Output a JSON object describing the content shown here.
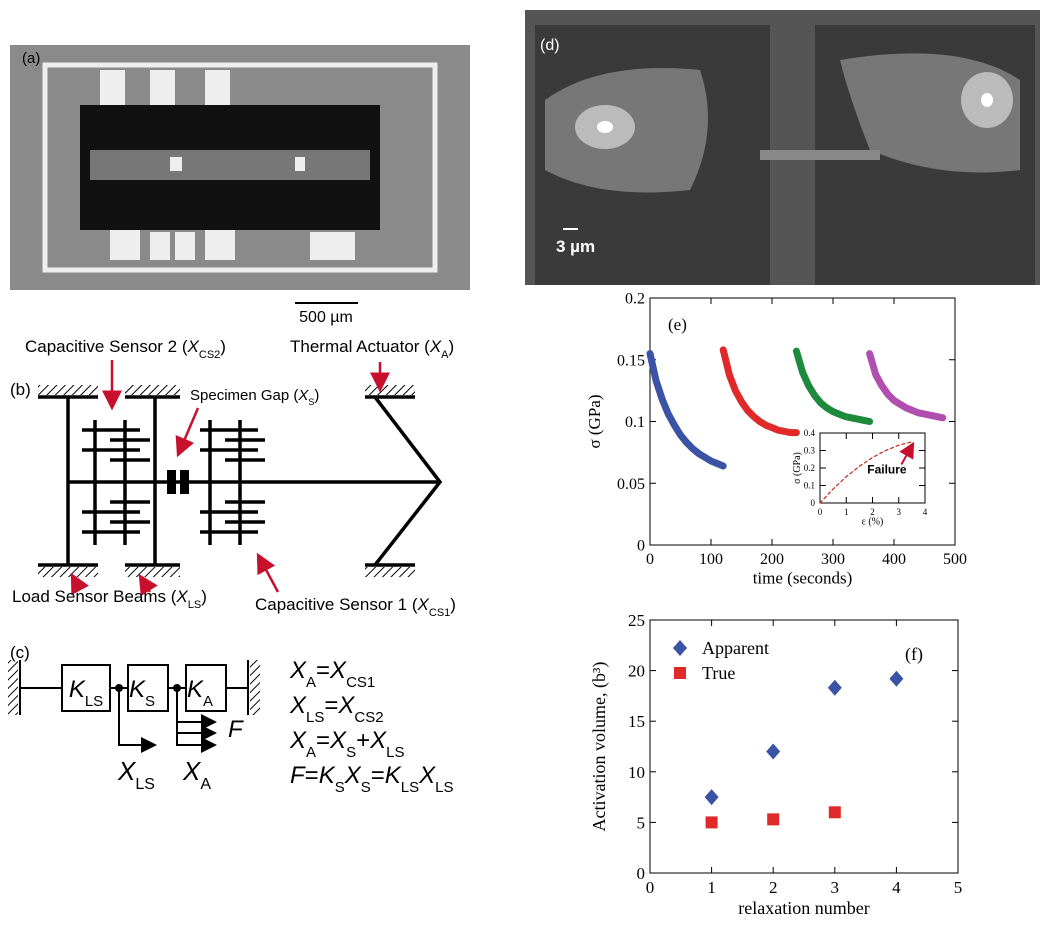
{
  "panels": {
    "a": {
      "label": "(a)",
      "scale_bar": "500 µm"
    },
    "b": {
      "label": "(b)",
      "callouts": [
        {
          "prefix": "Capacitive Sensor 2 (",
          "symbol": "X",
          "sub": "CS2",
          "suffix": ")"
        },
        {
          "prefix": "Thermal Actuator (",
          "symbol": "X",
          "sub": "A",
          "suffix": ")"
        },
        {
          "prefix": "Specimen Gap (",
          "symbol": "X",
          "sub": "S",
          "suffix": ")"
        },
        {
          "prefix": "Load Sensor Beams (",
          "symbol": "X",
          "sub": "LS",
          "suffix": ")"
        },
        {
          "prefix": "Capacitive Sensor 1 (",
          "symbol": "X",
          "sub": "CS1",
          "suffix": ")"
        }
      ]
    },
    "c": {
      "label": "(c)",
      "springs": [
        {
          "symbol": "K",
          "sub": "LS"
        },
        {
          "symbol": "K",
          "sub": "S"
        },
        {
          "symbol": "K",
          "sub": "A"
        }
      ],
      "force": "F",
      "displacements": [
        {
          "symbol": "X",
          "sub": "LS"
        },
        {
          "symbol": "X",
          "sub": "A"
        }
      ],
      "equations": [
        [
          {
            "symbol": "X",
            "sub": "A"
          },
          {
            "symbol": "="
          },
          {
            "symbol": "X",
            "sub": "CS1"
          }
        ],
        [
          {
            "symbol": "X",
            "sub": "LS"
          },
          {
            "symbol": "="
          },
          {
            "symbol": "X",
            "sub": "CS2"
          }
        ],
        [
          {
            "symbol": "X",
            "sub": "A"
          },
          {
            "symbol": "="
          },
          {
            "symbol": "X",
            "sub": "S"
          },
          {
            "symbol": "+"
          },
          {
            "symbol": "X",
            "sub": "LS"
          }
        ],
        [
          {
            "symbol": "F"
          },
          {
            "symbol": "="
          },
          {
            "symbol": "K",
            "sub": "S"
          },
          {
            "symbol": "X",
            "sub": "S"
          },
          {
            "symbol": "="
          },
          {
            "symbol": "K",
            "sub": "LS"
          },
          {
            "symbol": "X",
            "sub": "LS"
          }
        ]
      ]
    },
    "d": {
      "label": "(d)",
      "scale_bar": "3 µm"
    }
  },
  "chart_data": [
    {
      "type": "line",
      "label": "(e)",
      "xlabel": "time (seconds)",
      "ylabel": "σ (GPa)",
      "xlim": [
        0,
        500
      ],
      "xticks": [
        0,
        100,
        200,
        300,
        400,
        500
      ],
      "ylim": [
        0,
        0.2
      ],
      "yticks": [
        0,
        0.05,
        0.1,
        0.15,
        0.2
      ],
      "series": [
        {
          "color": "#3a53a4",
          "x": [
            0,
            10,
            20,
            30,
            40,
            50,
            60,
            70,
            80,
            90,
            100,
            110,
            120
          ],
          "values": [
            0.155,
            0.133,
            0.118,
            0.106,
            0.097,
            0.089,
            0.083,
            0.078,
            0.074,
            0.071,
            0.068,
            0.066,
            0.064
          ]
        },
        {
          "color": "#e02a2a",
          "x": [
            120,
            130,
            140,
            150,
            160,
            170,
            180,
            190,
            200,
            210,
            220,
            230,
            240
          ],
          "values": [
            0.158,
            0.138,
            0.125,
            0.116,
            0.109,
            0.104,
            0.1,
            0.097,
            0.095,
            0.093,
            0.092,
            0.091,
            0.091
          ]
        },
        {
          "color": "#1e8a3c",
          "x": [
            240,
            250,
            260,
            270,
            280,
            290,
            300,
            310,
            320,
            330,
            340,
            350,
            360
          ],
          "values": [
            0.157,
            0.14,
            0.129,
            0.121,
            0.115,
            0.111,
            0.108,
            0.106,
            0.104,
            0.103,
            0.102,
            0.101,
            0.1
          ]
        },
        {
          "color": "#b04fb0",
          "x": [
            360,
            370,
            380,
            390,
            400,
            410,
            420,
            430,
            440,
            450,
            460,
            470,
            480
          ],
          "values": [
            0.155,
            0.138,
            0.129,
            0.122,
            0.117,
            0.114,
            0.111,
            0.109,
            0.107,
            0.106,
            0.105,
            0.104,
            0.103
          ]
        }
      ]
    },
    {
      "type": "line",
      "xlabel": "ε (%)",
      "ylabel": "σ (GPa)",
      "annotation": "Failure",
      "xlim": [
        0,
        4
      ],
      "xticks": [
        0,
        1,
        2,
        3,
        4
      ],
      "ylim": [
        0,
        0.4
      ],
      "yticks": [
        0,
        0.1,
        0.2,
        0.3,
        0.4
      ],
      "dashed": true,
      "series": [
        {
          "color": "#c0392b",
          "x": [
            0,
            0.5,
            1,
            1.5,
            2,
            2.5,
            3,
            3.5
          ],
          "values": [
            0,
            0.08,
            0.15,
            0.21,
            0.26,
            0.3,
            0.33,
            0.35
          ]
        }
      ]
    },
    {
      "type": "scatter",
      "label": "(f)",
      "xlabel": "relaxation number",
      "ylabel": "Activation volume, (b³)",
      "xlim": [
        0,
        5
      ],
      "xticks": [
        0,
        1,
        2,
        3,
        4,
        5
      ],
      "ylim": [
        0,
        25
      ],
      "yticks": [
        0,
        5,
        10,
        15,
        20,
        25
      ],
      "series": [
        {
          "name": "Apparent",
          "color": "#3a53a4",
          "marker": "diamond",
          "x": [
            1,
            2,
            3,
            4
          ],
          "values": [
            7.5,
            12,
            18.3,
            19.2
          ]
        },
        {
          "name": "True",
          "color": "#e02a2a",
          "marker": "square",
          "x": [
            1,
            2,
            3
          ],
          "values": [
            5,
            5.3,
            6
          ]
        }
      ]
    }
  ]
}
